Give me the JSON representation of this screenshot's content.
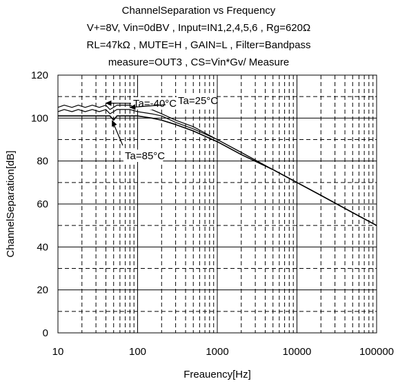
{
  "chart_data": {
    "type": "line",
    "title_lines": [
      "ChannelSeparation vs Frequency",
      "V+=8V, Vin=0dBV , Input=IN1,2,4,5,6 , Rg=620Ω",
      "RL=47kΩ , MUTE=H , GAIN=L , Filter=Bandpass",
      "measure=OUT3 , CS=Vin*Gv/ Measure"
    ],
    "xlabel": "Freauency[Hz]",
    "ylabel": "ChannelSeparation[dB]",
    "xscale": "log",
    "xlim": [
      10,
      100000
    ],
    "ylim": [
      0,
      120
    ],
    "x_ticks": [
      "10",
      "100",
      "1000",
      "10000",
      "100000"
    ],
    "y_ticks": [
      "0",
      "20",
      "40",
      "60",
      "80",
      "100",
      "120"
    ],
    "grid": true,
    "series": [
      {
        "name": "Ta=-40°C",
        "x": [
          10,
          12,
          15,
          18,
          22,
          27,
          33,
          40,
          45,
          50,
          55,
          60,
          70,
          80,
          100,
          150,
          200,
          300,
          500,
          1000,
          2000,
          5000,
          10000,
          20000,
          50000,
          100000
        ],
        "y": [
          105,
          106,
          105,
          106,
          105,
          106,
          105,
          106,
          104,
          105,
          106,
          106,
          106,
          106,
          105,
          104,
          102,
          99,
          96,
          90,
          84,
          76,
          70,
          64,
          56,
          50
        ]
      },
      {
        "name": "Ta=25°C",
        "x": [
          10,
          12,
          15,
          18,
          22,
          27,
          33,
          40,
          45,
          50,
          55,
          60,
          70,
          80,
          100,
          150,
          200,
          300,
          500,
          1000,
          2000,
          5000,
          10000,
          20000,
          50000,
          100000
        ],
        "y": [
          103,
          104,
          103,
          104,
          103,
          104,
          103,
          104,
          102,
          103,
          104,
          104,
          104,
          104,
          103,
          102,
          101,
          98,
          95,
          90,
          84,
          76,
          70,
          64,
          56,
          50
        ]
      },
      {
        "name": "Ta=85°C",
        "x": [
          10,
          15,
          20,
          30,
          40,
          45,
          50,
          55,
          60,
          80,
          100,
          150,
          200,
          300,
          500,
          1000,
          2000,
          5000,
          10000,
          20000,
          50000,
          100000
        ],
        "y": [
          101,
          101,
          101,
          101,
          101,
          101,
          99,
          101,
          101,
          101,
          101,
          100,
          99,
          97,
          94,
          89,
          83,
          76,
          70,
          64,
          56,
          50
        ]
      }
    ],
    "annotations": [
      {
        "text": "Ta=-40°C",
        "series": 0
      },
      {
        "text": "Ta=25°C",
        "series": 1
      },
      {
        "text": "Ta=85°C",
        "series": 2
      }
    ]
  }
}
